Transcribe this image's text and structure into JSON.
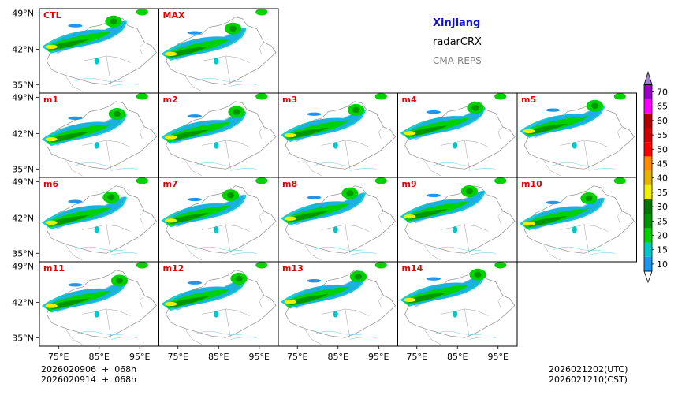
{
  "header": {
    "region": "XinJiang",
    "variable": "radarCRX",
    "model": "CMA-REPS"
  },
  "axes": {
    "lat_ticks": [
      "49°N",
      "42°N",
      "35°N"
    ],
    "lon_ticks": [
      "75°E",
      "85°E",
      "95°E"
    ]
  },
  "panels": {
    "row1": [
      "CTL",
      "MAX"
    ],
    "row2": [
      "m1",
      "m2",
      "m3",
      "m4",
      "m5"
    ],
    "row3": [
      "m6",
      "m7",
      "m8",
      "m9",
      "m10"
    ],
    "row4": [
      "m11",
      "m12",
      "m13",
      "m14"
    ]
  },
  "colorbar": {
    "levels": [
      "10",
      "15",
      "20",
      "25",
      "30",
      "35",
      "40",
      "45",
      "50",
      "55",
      "60",
      "65",
      "70"
    ],
    "colors": [
      "#1e96f0",
      "#00c8c8",
      "#00d200",
      "#009600",
      "#007800",
      "#f0f000",
      "#e6b400",
      "#ff8c00",
      "#ff0000",
      "#d20000",
      "#b40000",
      "#ff00ff",
      "#9c00c8"
    ],
    "over_color": "#a082d2"
  },
  "time_left": {
    "line1": "2026020906  +  068h",
    "line2": "2026020914  +  068h"
  },
  "time_right": {
    "line1": "2026021202(UTC)",
    "line2": "2026021210(CST)"
  }
}
